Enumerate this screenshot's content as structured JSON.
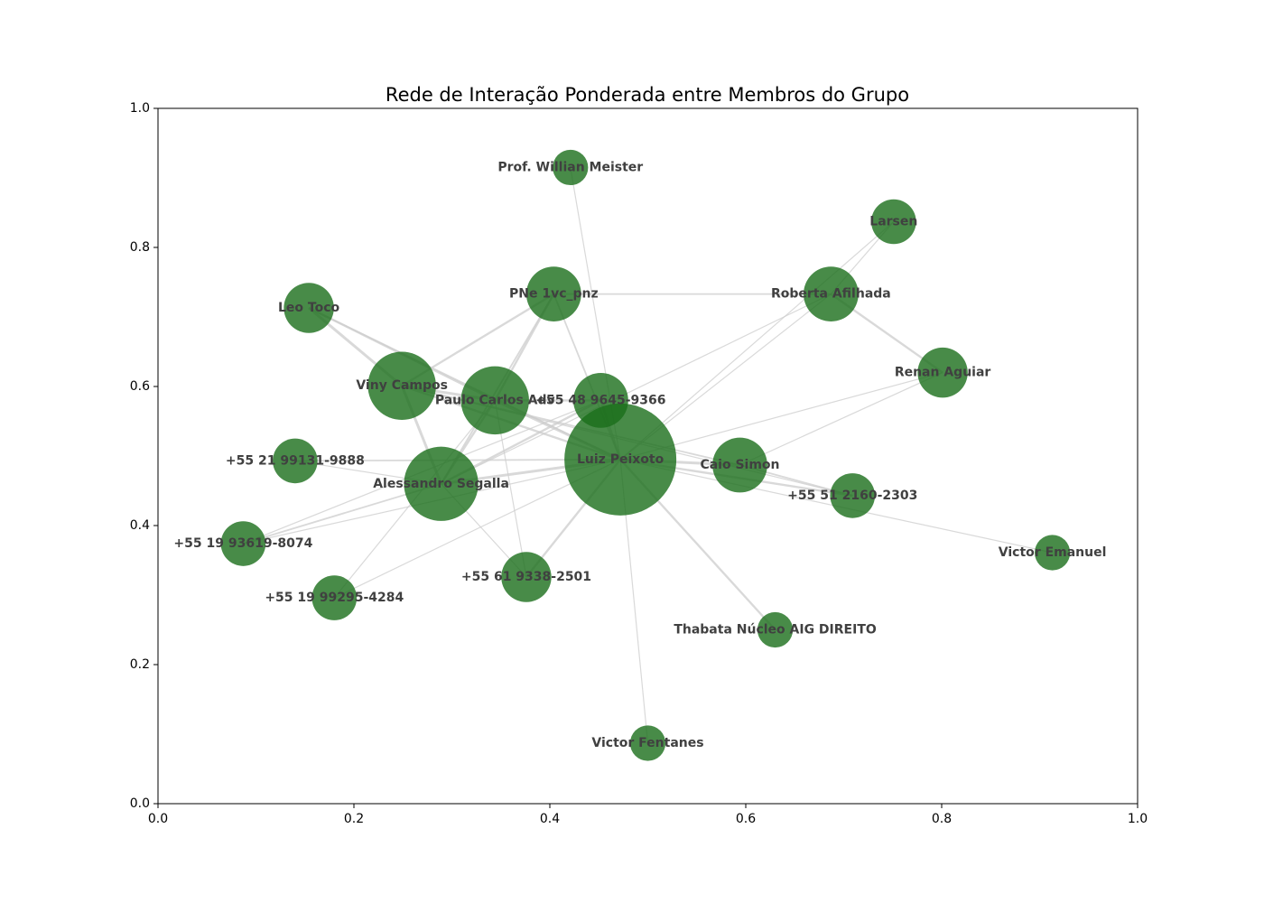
{
  "colors": {
    "node": "#1a6e1a",
    "edge": "#cccccc",
    "label": "#404040",
    "axis": "#000000"
  },
  "chart_data": {
    "type": "network",
    "title": "Rede de Interação Ponderada entre Membros do Grupo",
    "xlabel": "",
    "ylabel": "",
    "xlim": [
      0.0,
      1.0
    ],
    "ylim": [
      0.0,
      1.0
    ],
    "xticks": [
      "0.0",
      "0.2",
      "0.4",
      "0.6",
      "0.8",
      "1.0"
    ],
    "yticks": [
      "0.0",
      "0.2",
      "0.4",
      "0.6",
      "0.8",
      "1.0"
    ],
    "grid": false,
    "nodes": [
      {
        "id": "luiz",
        "label": "Luiz Peixoto",
        "x": 0.472,
        "y": 0.495,
        "size": 1.0
      },
      {
        "id": "alessandro",
        "label": "Alessandro Segalla",
        "x": 0.289,
        "y": 0.46,
        "size": 0.44
      },
      {
        "id": "paulo",
        "label": "Paulo Carlos Adv",
        "x": 0.344,
        "y": 0.58,
        "size": 0.37
      },
      {
        "id": "viny",
        "label": "Viny Campos",
        "x": 0.249,
        "y": 0.601,
        "size": 0.37
      },
      {
        "id": "pne",
        "label": "PNe 1vc_pnz",
        "x": 0.404,
        "y": 0.733,
        "size": 0.24
      },
      {
        "id": "roberta",
        "label": "Roberta Afilhada",
        "x": 0.687,
        "y": 0.733,
        "size": 0.24
      },
      {
        "id": "caio",
        "label": "Caio Simon",
        "x": 0.594,
        "y": 0.487,
        "size": 0.24
      },
      {
        "id": "p48",
        "label": "+55 48 9645-9366",
        "x": 0.452,
        "y": 0.58,
        "size": 0.24
      },
      {
        "id": "leo",
        "label": "Leo Toco",
        "x": 0.154,
        "y": 0.713,
        "size": 0.2
      },
      {
        "id": "renan",
        "label": "Renan Aguiar",
        "x": 0.801,
        "y": 0.62,
        "size": 0.2
      },
      {
        "id": "p61",
        "label": "+55 61 9338-2501",
        "x": 0.376,
        "y": 0.326,
        "size": 0.2
      },
      {
        "id": "larsen",
        "label": "Larsen",
        "x": 0.751,
        "y": 0.837,
        "size": 0.16
      },
      {
        "id": "p21",
        "label": "+55 21 99131-9888",
        "x": 0.14,
        "y": 0.493,
        "size": 0.16
      },
      {
        "id": "p5193",
        "label": "+55 19 93619-8074",
        "x": 0.087,
        "y": 0.374,
        "size": 0.16
      },
      {
        "id": "p5199",
        "label": "+55 19 99295-4284",
        "x": 0.18,
        "y": 0.296,
        "size": 0.16
      },
      {
        "id": "p51",
        "label": "+55 51 2160-2303",
        "x": 0.709,
        "y": 0.443,
        "size": 0.16
      },
      {
        "id": "will",
        "label": "Prof. Willian Meister",
        "x": 0.421,
        "y": 0.915,
        "size": 0.1
      },
      {
        "id": "victore",
        "label": "Victor Emanuel",
        "x": 0.913,
        "y": 0.361,
        "size": 0.1
      },
      {
        "id": "thabata",
        "label": "Thabata Núcleo AIG DIREITO",
        "x": 0.63,
        "y": 0.25,
        "size": 0.1
      },
      {
        "id": "victorf",
        "label": "Victor Fentanes",
        "x": 0.5,
        "y": 0.087,
        "size": 0.1
      }
    ],
    "edges": [
      [
        "leo",
        "viny",
        4
      ],
      [
        "leo",
        "paulo",
        3
      ],
      [
        "leo",
        "luiz",
        2
      ],
      [
        "viny",
        "paulo",
        4
      ],
      [
        "viny",
        "alessandro",
        4
      ],
      [
        "viny",
        "luiz",
        3
      ],
      [
        "viny",
        "pne",
        3
      ],
      [
        "viny",
        "caio",
        2
      ],
      [
        "viny",
        "p51",
        1
      ],
      [
        "paulo",
        "alessandro",
        3
      ],
      [
        "paulo",
        "luiz",
        4
      ],
      [
        "paulo",
        "pne",
        3
      ],
      [
        "paulo",
        "p48",
        3
      ],
      [
        "paulo",
        "p61",
        1
      ],
      [
        "paulo",
        "p5199",
        1
      ],
      [
        "alessandro",
        "luiz",
        4
      ],
      [
        "alessandro",
        "p48",
        3
      ],
      [
        "alessandro",
        "p21",
        1
      ],
      [
        "alessandro",
        "p5193",
        2
      ],
      [
        "alessandro",
        "p61",
        1
      ],
      [
        "pne",
        "roberta",
        2
      ],
      [
        "pne",
        "luiz",
        2
      ],
      [
        "pne",
        "alessandro",
        2
      ],
      [
        "luiz",
        "caio",
        4
      ],
      [
        "luiz",
        "p51",
        3
      ],
      [
        "luiz",
        "thabata",
        3
      ],
      [
        "luiz",
        "p61",
        3
      ],
      [
        "luiz",
        "victorf",
        1
      ],
      [
        "luiz",
        "roberta",
        1
      ],
      [
        "luiz",
        "larsen",
        1
      ],
      [
        "luiz",
        "renan",
        1
      ],
      [
        "luiz",
        "p21",
        2
      ],
      [
        "luiz",
        "p5193",
        1
      ],
      [
        "luiz",
        "p5199",
        1
      ],
      [
        "luiz",
        "will",
        1
      ],
      [
        "luiz",
        "victore",
        1
      ],
      [
        "luiz",
        "p48",
        3
      ],
      [
        "roberta",
        "renan",
        3
      ],
      [
        "roberta",
        "larsen",
        1
      ],
      [
        "roberta",
        "alessandro",
        1
      ],
      [
        "caio",
        "renan",
        1
      ],
      [
        "caio",
        "p51",
        2
      ],
      [
        "p48",
        "p5193",
        1
      ]
    ]
  }
}
